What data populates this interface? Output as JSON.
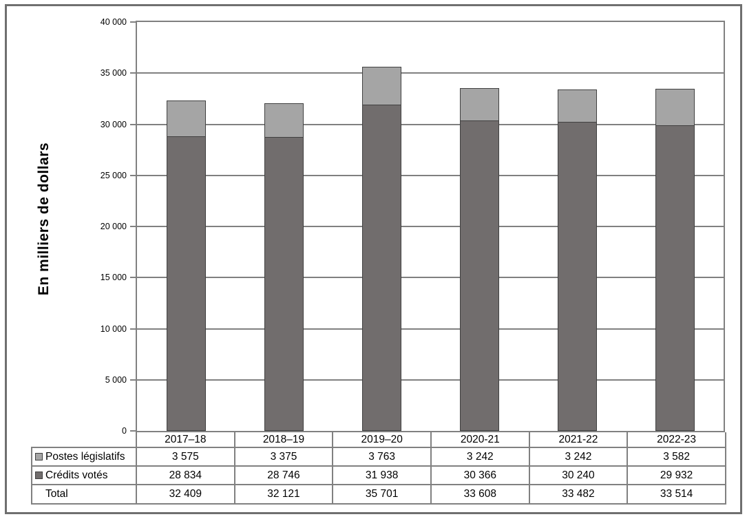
{
  "chart_data": {
    "type": "bar",
    "stacked": true,
    "title": "",
    "xlabel": "",
    "ylabel": "En milliers de dollars",
    "ylim": [
      0,
      40000
    ],
    "ytick_step": 5000,
    "ytick_labels": [
      "0",
      "5 000",
      "10 000",
      "15 000",
      "20 000",
      "25 000",
      "30 000",
      "35 000",
      "40 000"
    ],
    "grid": true,
    "legend_position": "table-left",
    "categories": [
      "2017–18",
      "2018–19",
      "2019–20",
      "2020-21",
      "2021-22",
      "2022-23"
    ],
    "series": [
      {
        "name": "Postes législatifs",
        "role": "top-segment",
        "color": "#a5a5a5",
        "values": [
          3575,
          3375,
          3763,
          3242,
          3242,
          3582
        ]
      },
      {
        "name": "Crédits votés",
        "role": "bottom-segment",
        "color": "#716d6d",
        "values": [
          28834,
          28746,
          31938,
          30366,
          30240,
          29932
        ]
      }
    ],
    "totals": {
      "label": "Total",
      "values": [
        32409,
        32121,
        35701,
        33608,
        33482,
        33514
      ]
    },
    "table_value_labels": {
      "postes_legislatifs": [
        "3 575",
        "3 375",
        "3 763",
        "3 242",
        "3 242",
        "3 582"
      ],
      "credits_votes": [
        "28 834",
        "28 746",
        "31 938",
        "30 366",
        "30 240",
        "29 932"
      ],
      "total": [
        "32 409",
        "32 121",
        "35 701",
        "33 608",
        "33 482",
        "33 514"
      ]
    }
  },
  "colors": {
    "series_light": "#a5a5a5",
    "series_dark": "#716d6d",
    "bar_border": "#404040",
    "grid_border": "#808080",
    "outer_frame": "#6f6f6f",
    "text": "#000000"
  }
}
